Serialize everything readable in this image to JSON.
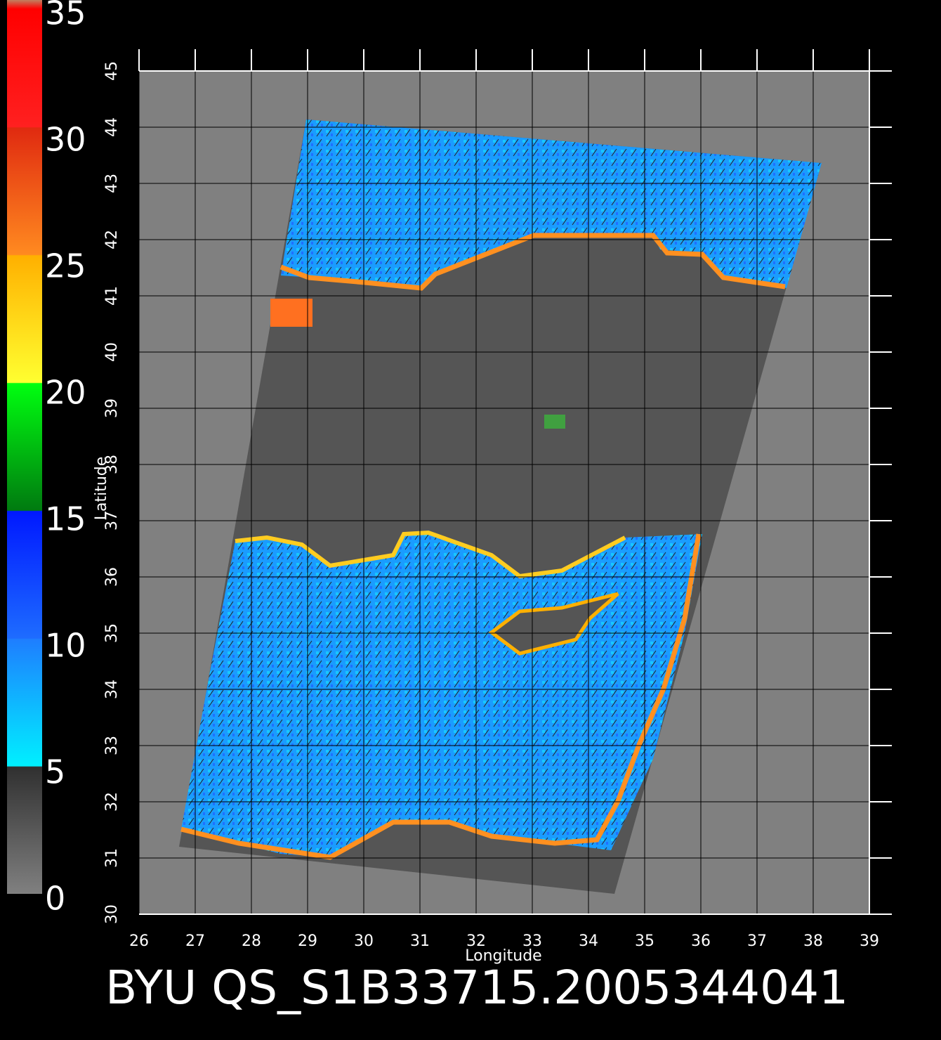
{
  "chart_data": {
    "type": "map",
    "title": "BYU QS_S1B33715.2005344041",
    "xlabel": "Longitude",
    "ylabel": "Latitude",
    "xlim": [
      26,
      39
    ],
    "ylim": [
      30,
      45
    ],
    "xticks": [
      26,
      27,
      28,
      29,
      30,
      31,
      32,
      33,
      34,
      35,
      36,
      37,
      38,
      39
    ],
    "yticks": [
      30,
      31,
      32,
      33,
      34,
      35,
      36,
      37,
      38,
      39,
      40,
      41,
      42,
      43,
      44,
      45
    ],
    "grid": true,
    "colorbar": {
      "lim": [
        0,
        35
      ],
      "ticks": [
        0,
        5,
        10,
        15,
        20,
        25,
        30,
        35
      ]
    }
  }
}
